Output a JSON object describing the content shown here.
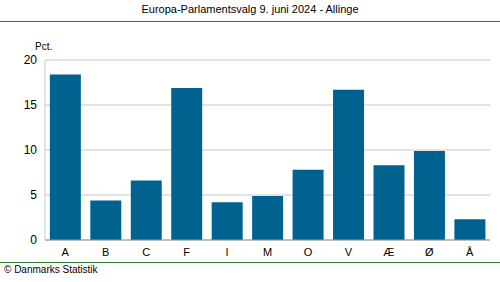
{
  "chart_data": {
    "type": "bar",
    "title": "Europa-Parlamentsvalg 9. juni 2024 - Allinge",
    "y_label": "Pct.",
    "source": "© Danmarks Statistik",
    "categories": [
      "A",
      "B",
      "C",
      "F",
      "I",
      "M",
      "O",
      "V",
      "Æ",
      "Ø",
      "Å"
    ],
    "values": [
      18.4,
      4.4,
      6.6,
      16.9,
      4.2,
      4.9,
      7.8,
      16.7,
      8.3,
      9.9,
      2.3
    ],
    "color": "#00628f",
    "ylim": [
      0,
      20
    ],
    "yticks": [
      0,
      5,
      10,
      15,
      20
    ],
    "grid": true
  }
}
